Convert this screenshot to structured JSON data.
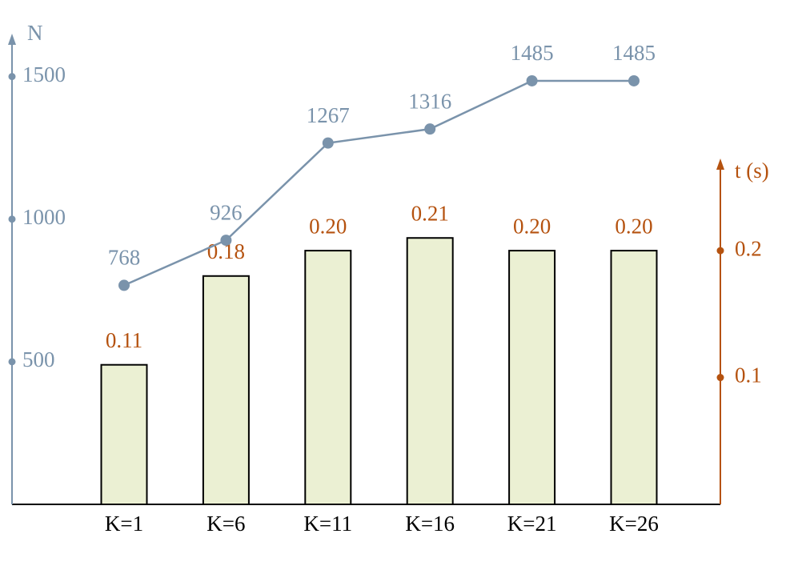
{
  "chart_data": {
    "type": "combo",
    "categories": [
      "K=1",
      "K=6",
      "K=11",
      "K=16",
      "K=21",
      "K=26"
    ],
    "y_label": "N",
    "y2_label": "t (s)",
    "ylim": [
      0,
      1600
    ],
    "yticks": [
      500,
      1000,
      1500
    ],
    "y2lim": [
      0,
      0.26
    ],
    "y2ticks": [
      0.1,
      0.2
    ],
    "series": [
      {
        "type": "line",
        "axis": "y",
        "color": "#7a93ab",
        "values": [
          768,
          926,
          1267,
          1316,
          1485,
          1485
        ]
      },
      {
        "type": "bar",
        "axis": "y2",
        "color": "#ebf0d3",
        "label_color": "#b5520f",
        "values": [
          0.11,
          0.18,
          0.2,
          0.21,
          0.2,
          0.2
        ],
        "value_labels": [
          "0.11",
          "0.18",
          "0.20",
          "0.21",
          "0.20",
          "0.20"
        ]
      }
    ]
  }
}
